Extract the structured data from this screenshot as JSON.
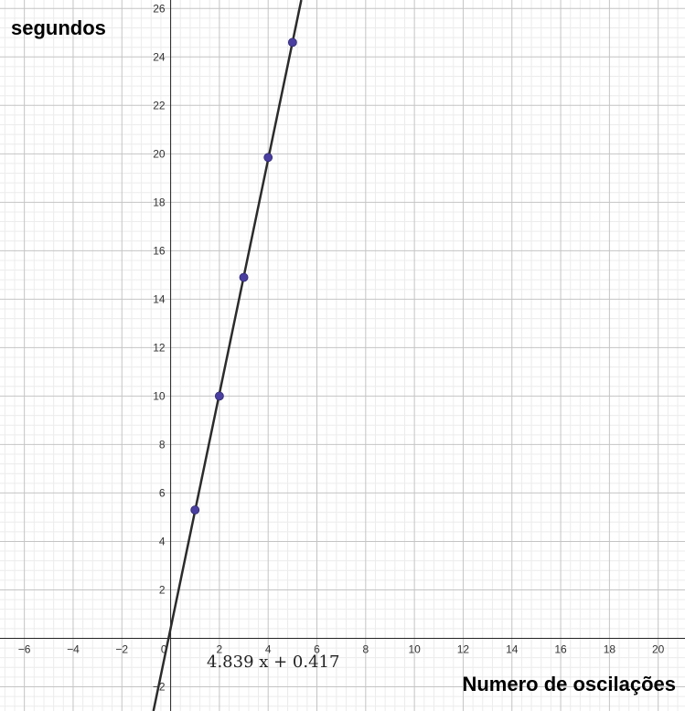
{
  "chart_data": {
    "type": "scatter",
    "title": "",
    "xlabel": "Numero de oscilações",
    "ylabel": "segundos",
    "xlim": [
      -7,
      21.1
    ],
    "ylim": [
      -3,
      26.35
    ],
    "grid": true,
    "x_ticks": [
      -6,
      -4,
      -2,
      0,
      2,
      4,
      6,
      8,
      10,
      12,
      14,
      16,
      18,
      20
    ],
    "x_tick_labels": [
      "−6",
      "−4",
      "−2",
      "0",
      "2",
      "4",
      "6",
      "8",
      "10",
      "12",
      "14",
      "16",
      "18",
      "20"
    ],
    "y_ticks": [
      -2,
      2,
      4,
      6,
      8,
      10,
      12,
      14,
      16,
      18,
      20,
      22,
      24,
      26
    ],
    "y_tick_labels": [
      "−2",
      "2",
      "4",
      "6",
      "8",
      "10",
      "12",
      "14",
      "16",
      "18",
      "20",
      "22",
      "24",
      "26"
    ],
    "points": {
      "x": [
        1,
        2,
        3,
        4,
        5
      ],
      "y": [
        5.3,
        10.0,
        14.9,
        19.85,
        24.6
      ],
      "color": "#4a3fa0"
    },
    "fit_line": {
      "slope": 4.839,
      "intercept": 0.417,
      "equation": "4.839 x + 0.417",
      "color": "#2b2b2b"
    }
  }
}
